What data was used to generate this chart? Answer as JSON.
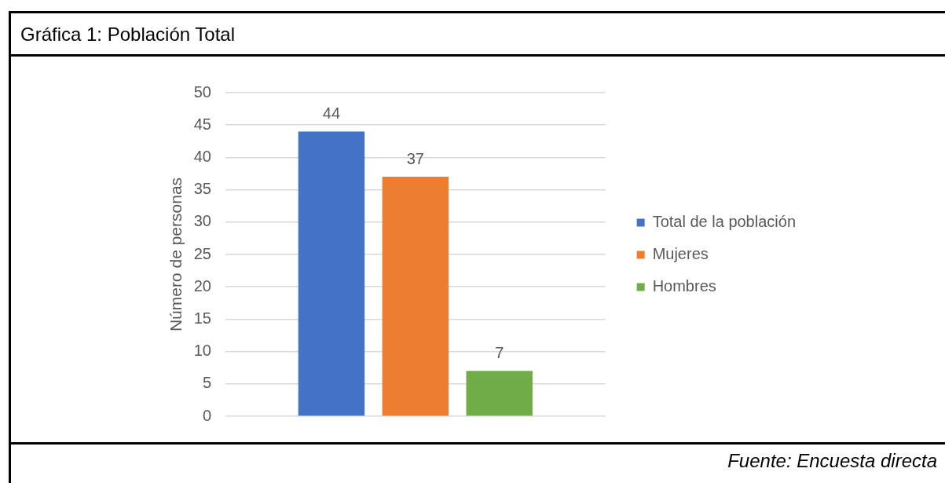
{
  "chart_data": {
    "type": "bar",
    "title": "Gráfica 1: Población Total",
    "ylabel": "Número de personas",
    "categories": [
      null
    ],
    "series": [
      {
        "name": "Total de la población",
        "color": "#4472c4",
        "values": [
          44
        ]
      },
      {
        "name": "Mujeres",
        "color": "#ed7d31",
        "values": [
          37
        ]
      },
      {
        "name": "Hombres",
        "color": "#70ad47",
        "values": [
          7
        ]
      }
    ],
    "ylim": [
      0,
      50
    ],
    "yticks": [
      0,
      5,
      10,
      15,
      20,
      25,
      30,
      35,
      40,
      45,
      50
    ],
    "grid": "y",
    "legend": "right",
    "data_labels": true,
    "annotations": [
      "Fuente: Encuesta directa"
    ]
  }
}
